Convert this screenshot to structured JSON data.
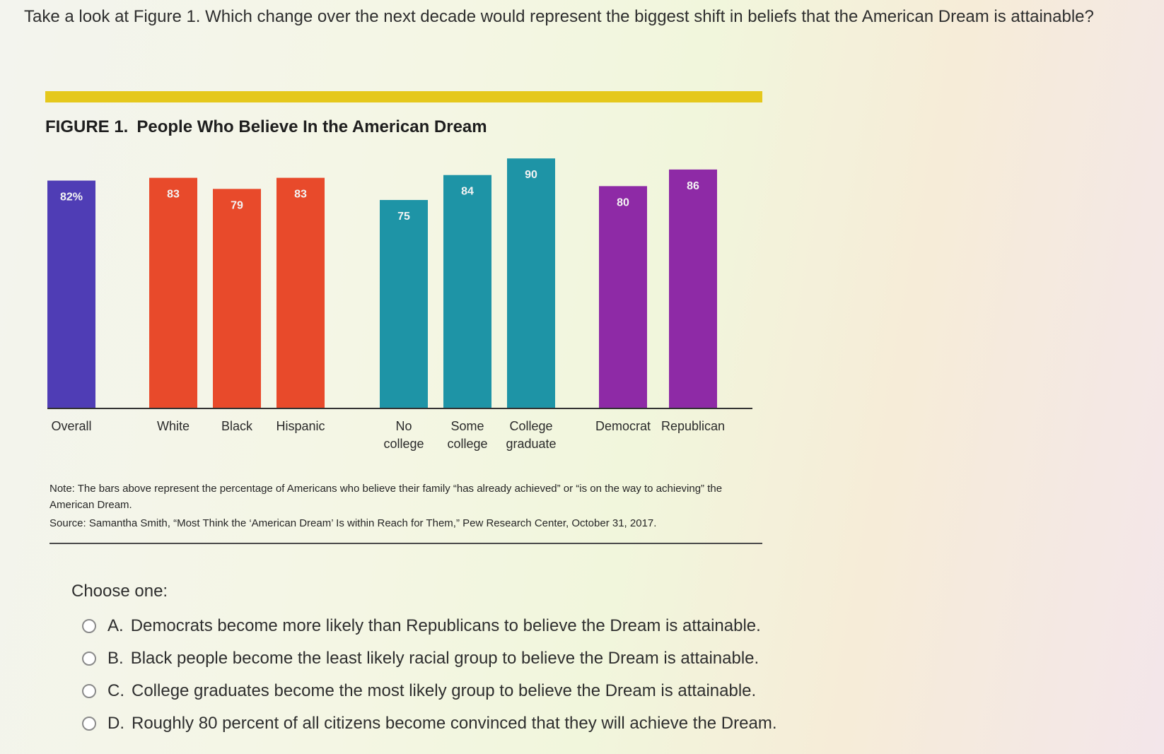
{
  "question": "Take a look at Figure 1. Which change over the next decade would represent the biggest shift in beliefs that the American Dream is attainable?",
  "figure": {
    "label": "FIGURE 1.",
    "title": "People Who Believe In the American Dream",
    "accent_color": "#e5c81c",
    "note": "Note: The bars above represent the percentage of Americans who believe their family “has already achieved” or “is on the way to achieving” the American Dream.",
    "source": "Source: Samantha Smith, “Most Think the ‘American Dream’ Is within Reach for Them,” Pew Research Center, October 31, 2017."
  },
  "chart_data": {
    "type": "bar",
    "title": "People Who Believe In the American Dream",
    "xlabel": "",
    "ylabel": "",
    "ylim": [
      0,
      100
    ],
    "grid": false,
    "categories": [
      {
        "label": [
          "Overall"
        ],
        "value": 82,
        "value_label": "82%",
        "color": "#4f3db5",
        "group": 0
      },
      {
        "label": [
          "White"
        ],
        "value": 83,
        "value_label": "83",
        "color": "#e84a2b",
        "group": 1
      },
      {
        "label": [
          "Black"
        ],
        "value": 79,
        "value_label": "79",
        "color": "#e84a2b",
        "group": 1
      },
      {
        "label": [
          "Hispanic"
        ],
        "value": 83,
        "value_label": "83",
        "color": "#e84a2b",
        "group": 1
      },
      {
        "label": [
          "No",
          "college"
        ],
        "value": 75,
        "value_label": "75",
        "color": "#1e94a6",
        "group": 2
      },
      {
        "label": [
          "Some",
          "college"
        ],
        "value": 84,
        "value_label": "84",
        "color": "#1e94a6",
        "group": 2
      },
      {
        "label": [
          "College",
          "graduate"
        ],
        "value": 90,
        "value_label": "90",
        "color": "#1e94a6",
        "group": 2
      },
      {
        "label": [
          "Democrat"
        ],
        "value": 80,
        "value_label": "80",
        "color": "#8e2aa6",
        "group": 3
      },
      {
        "label": [
          "Republican"
        ],
        "value": 86,
        "value_label": "86",
        "color": "#8e2aa6",
        "group": 3
      }
    ]
  },
  "choose_label": "Choose one:",
  "options": [
    {
      "letter": "A.",
      "text": "Democrats become more likely than Republicans to believe the Dream is attainable."
    },
    {
      "letter": "B.",
      "text": "Black people become the least likely racial group to believe the Dream is attainable."
    },
    {
      "letter": "C.",
      "text": "College graduates become the most likely group to believe the Dream is attainable."
    },
    {
      "letter": "D.",
      "text": "Roughly 80 percent of all citizens become convinced that they will achieve the Dream."
    }
  ]
}
